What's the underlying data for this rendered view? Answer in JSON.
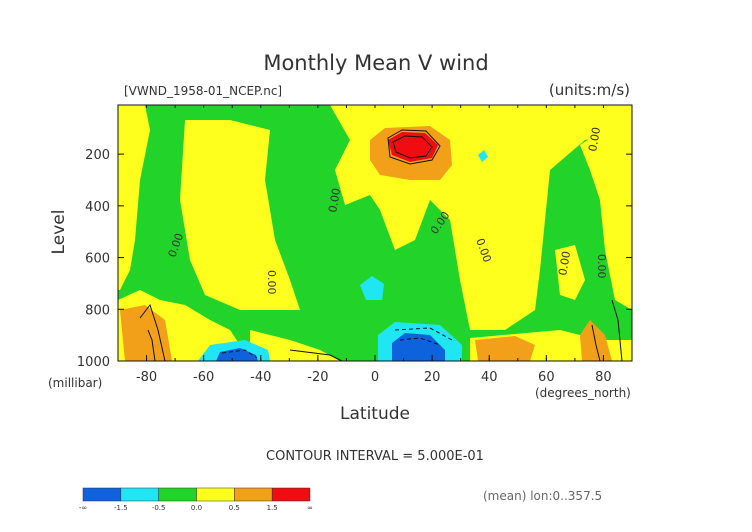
{
  "chart_data": {
    "type": "heatmap",
    "title": "Monthly Mean V wind",
    "file_label": "[VWND_1958-01_NCEP.nc]",
    "units_label": "(units:m/s)",
    "ylabel": "Level",
    "ylabel_units": "(millibar)",
    "xlabel": "Latitude",
    "xlabel_units": "(degrees_north)",
    "contour_interval": "CONTOUR INTERVAL = 5.000E-01",
    "mean_note": "(mean) lon:0..357.5",
    "x_ticks": [
      "-80",
      "-60",
      "-40",
      "-20",
      "0",
      "20",
      "40",
      "60",
      "80"
    ],
    "x_tick_values": [
      -80,
      -60,
      -40,
      -20,
      0,
      20,
      40,
      60,
      80
    ],
    "y_ticks": [
      "200",
      "400",
      "600",
      "800",
      "1000"
    ],
    "y_tick_values": [
      200,
      400,
      600,
      800,
      1000
    ],
    "xlim": [
      -90,
      90
    ],
    "ylim": [
      1000,
      10
    ],
    "contour_labels": [
      "0.00",
      "0.00",
      "0.00",
      "0.00",
      "0.00",
      "0.00",
      "0.00",
      "0.00"
    ],
    "colorbar": {
      "colors": [
        "#0e63dc",
        "#1fe6f2",
        "#22d42a",
        "#ffff1e",
        "#f2a01a",
        "#f00c10"
      ],
      "labels": [
        "-∞",
        "-1.5",
        "-0.5",
        "0.0",
        "0.5",
        "1.5",
        "∞"
      ]
    },
    "regions": {
      "fill_default": "#22d42a",
      "positive": "#ffff1e",
      "positive_strong": "#f2a01a",
      "positive_max": "#f00c10",
      "negative": "#1fe6f2",
      "negative_strong": "#0e63dc"
    }
  }
}
